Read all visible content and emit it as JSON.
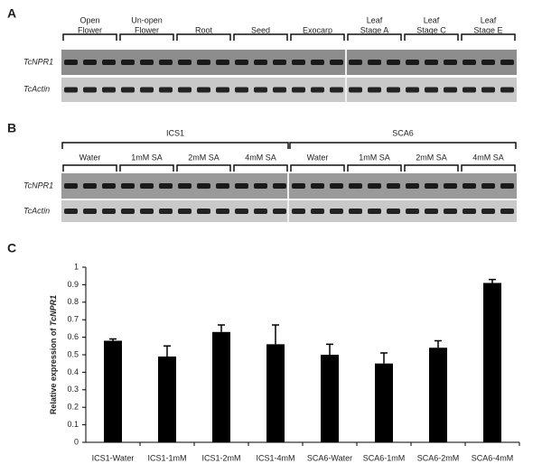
{
  "panel_a": {
    "label": "A",
    "groups": [
      [
        "Open",
        "Flower"
      ],
      [
        "Un-open",
        "Flower"
      ],
      [
        "Root"
      ],
      [
        "Seed"
      ],
      [
        "Exocarp"
      ],
      [
        "Leaf",
        "Stage A"
      ],
      [
        "Leaf",
        "Stage C"
      ],
      [
        "Leaf",
        "Stage E"
      ]
    ],
    "rows": [
      "TcNPR1",
      "TcActin"
    ]
  },
  "panel_b": {
    "label": "B",
    "lines": [
      "ICS1",
      "SCA6"
    ],
    "treatments": [
      "Water",
      "1mM SA",
      "2mM SA",
      "4mM SA"
    ],
    "rows": [
      "TcNPR1",
      "TcActin"
    ]
  },
  "chart_data": {
    "type": "bar",
    "panel_label": "C",
    "ylabel": "Relative expression of ",
    "ylabel_gene": "TcNPR1",
    "categories": [
      "ICS1-Water",
      "ICS1-1mM",
      "ICS1-2mM",
      "ICS1-4mM",
      "SCA6-Water",
      "SCA6-1mM",
      "SCA6-2mM",
      "SCA6-4mM"
    ],
    "values": [
      0.58,
      0.49,
      0.63,
      0.56,
      0.5,
      0.45,
      0.54,
      0.91
    ],
    "errors": [
      0.01,
      0.06,
      0.04,
      0.11,
      0.06,
      0.06,
      0.04,
      0.02
    ],
    "color": "#000000",
    "ylim": [
      0,
      1
    ],
    "yticks": [
      0,
      0.1,
      0.2,
      0.3,
      0.4,
      0.5,
      0.6,
      0.7,
      0.8,
      0.9,
      1
    ]
  }
}
